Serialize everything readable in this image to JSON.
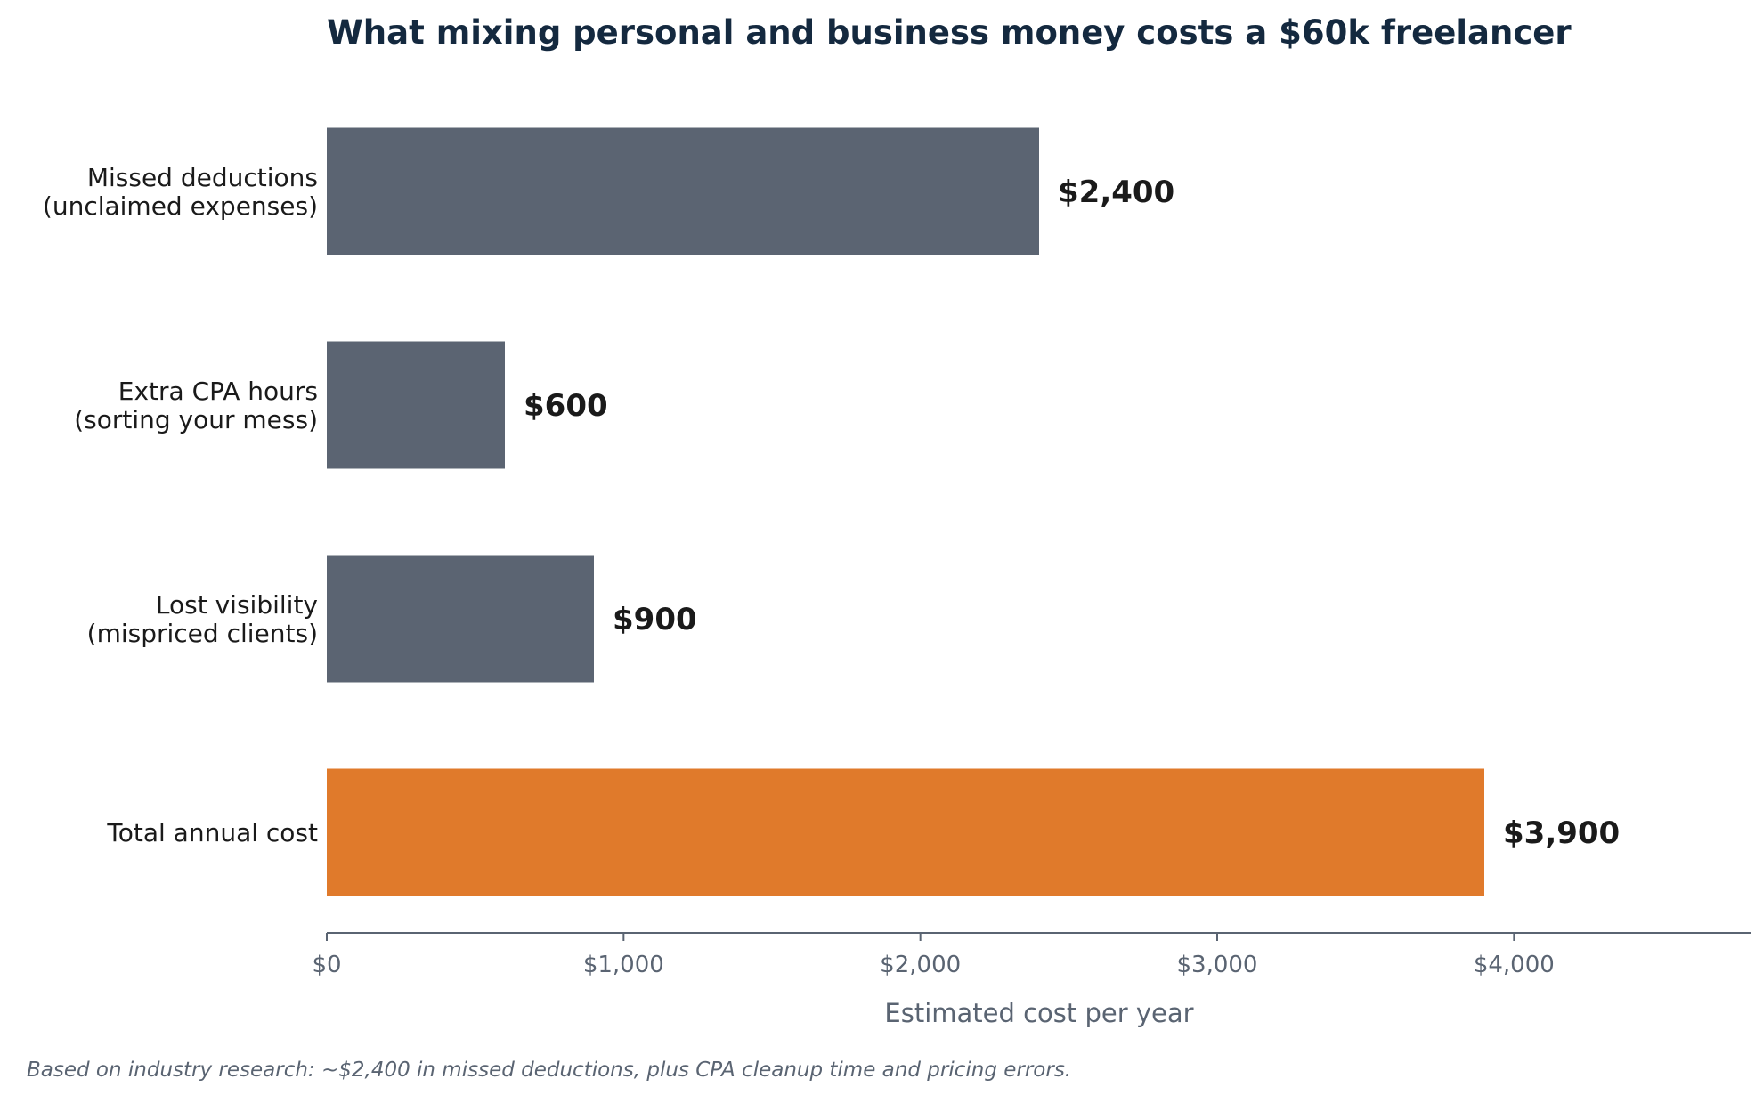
{
  "chart_data": {
    "type": "bar",
    "orientation": "horizontal",
    "title": "What mixing personal and business money costs a $60k freelancer",
    "categories": [
      [
        "Missed deductions",
        "(unclaimed expenses)"
      ],
      [
        "Extra CPA hours",
        "(sorting your mess)"
      ],
      [
        "Lost visibility",
        "(mispriced clients)"
      ],
      [
        "Total annual cost"
      ]
    ],
    "values": [
      2400,
      600,
      900,
      3900
    ],
    "value_labels": [
      "$2,400",
      "$600",
      "$900",
      "$3,900"
    ],
    "bar_colors": [
      "#5b6472",
      "#5b6472",
      "#5b6472",
      "#e07a2b"
    ],
    "xlabel": "Estimated cost per year",
    "ylabel": "",
    "xlim": [
      0,
      4800
    ],
    "x_ticks": [
      0,
      1000,
      2000,
      3000,
      4000
    ],
    "x_tick_labels": [
      "$0",
      "$1,000",
      "$2,000",
      "$3,000",
      "$4,000"
    ],
    "grid": false,
    "legend": "none",
    "footnote": "Based on industry research: ~$2,400 in missed deductions, plus CPA cleanup time and pricing errors."
  },
  "colors": {
    "title": "#14293f",
    "axis": "#5a6472",
    "neutral_bar": "#5b6472",
    "highlight_bar": "#e07a2b"
  }
}
